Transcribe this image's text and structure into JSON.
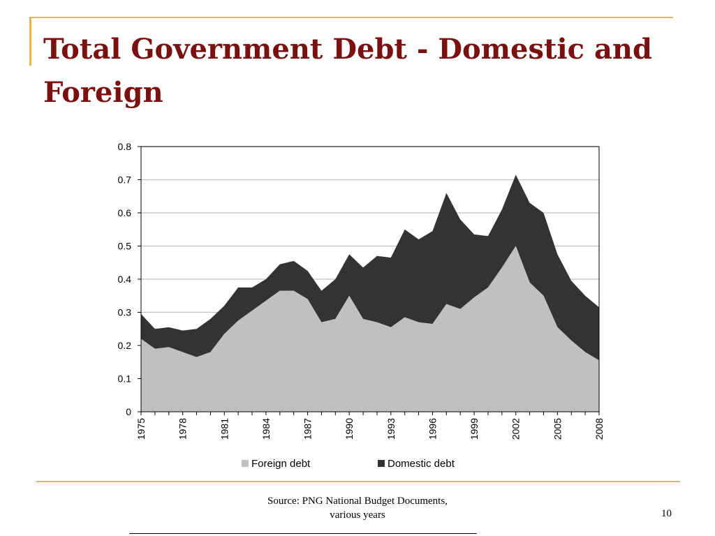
{
  "slide": {
    "title": "Total Government Debt - Domestic and Foreign",
    "source_line1": "Source: PNG National Budget Documents,",
    "source_line2": "various years",
    "page_number": "10"
  },
  "colors": {
    "title": "#7a1010",
    "accent_rule": "#e6b545",
    "foreign": "#c0c0c0",
    "domestic": "#333333",
    "grid": "#c0c0c0"
  },
  "chart_data": {
    "type": "area",
    "stacked": true,
    "title": "",
    "xlabel": "",
    "ylabel": "",
    "x": [
      1975,
      1976,
      1977,
      1978,
      1979,
      1980,
      1981,
      1982,
      1983,
      1984,
      1985,
      1986,
      1987,
      1988,
      1989,
      1990,
      1991,
      1992,
      1993,
      1994,
      1995,
      1996,
      1997,
      1998,
      1999,
      2000,
      2001,
      2002,
      2003,
      2004,
      2005,
      2006,
      2007,
      2008
    ],
    "x_tick_labels": [
      "1975",
      "1978",
      "1981",
      "1984",
      "1987",
      "1990",
      "1993",
      "1996",
      "1999",
      "2002",
      "2005",
      "2008"
    ],
    "ylim": [
      0,
      0.8
    ],
    "y_tick_labels": [
      "0",
      "0.1",
      "0.2",
      "0.3",
      "0.4",
      "0.5",
      "0.6",
      "0.7",
      "0.8"
    ],
    "grid": true,
    "legend_position": "bottom",
    "series": [
      {
        "name": "Foreign debt",
        "values": [
          0.22,
          0.19,
          0.195,
          0.18,
          0.165,
          0.18,
          0.235,
          0.275,
          0.305,
          0.335,
          0.365,
          0.365,
          0.34,
          0.27,
          0.28,
          0.35,
          0.28,
          0.27,
          0.255,
          0.285,
          0.27,
          0.265,
          0.325,
          0.31,
          0.345,
          0.375,
          0.435,
          0.5,
          0.39,
          0.35,
          0.255,
          0.215,
          0.18,
          0.155
        ]
      },
      {
        "name": "Domestic debt",
        "values": [
          0.075,
          0.06,
          0.06,
          0.065,
          0.085,
          0.1,
          0.085,
          0.1,
          0.07,
          0.065,
          0.08,
          0.09,
          0.085,
          0.095,
          0.12,
          0.125,
          0.155,
          0.2,
          0.21,
          0.265,
          0.25,
          0.28,
          0.335,
          0.27,
          0.19,
          0.155,
          0.175,
          0.215,
          0.24,
          0.25,
          0.22,
          0.18,
          0.17,
          0.16
        ]
      }
    ]
  }
}
